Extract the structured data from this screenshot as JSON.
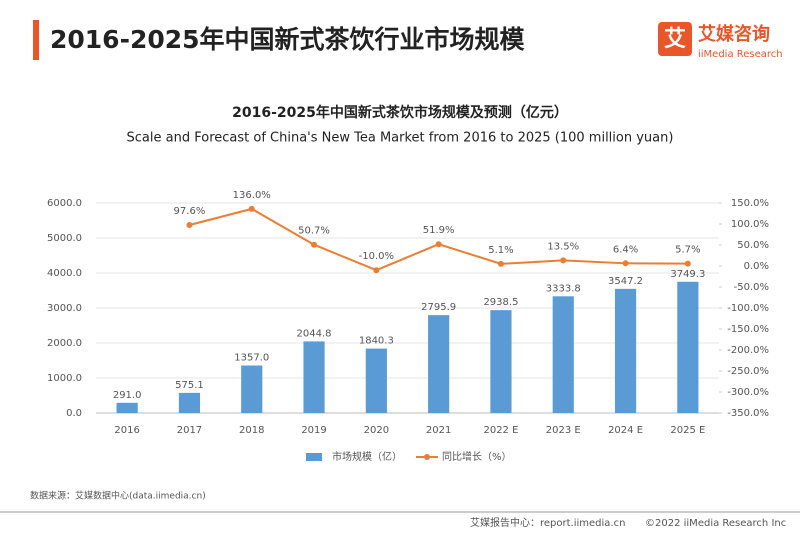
{
  "header": {
    "title": "2016-2025年中国新式茶饮行业市场规模",
    "logo_mark": "艾",
    "logo": "艾媒咨询",
    "logo_sub": "iiMedia Research"
  },
  "chart_data": {
    "type": "bar",
    "title": "2016-2025年中国新式茶饮市场规模及预测（亿元）",
    "subtitle": "Scale and Forecast of China's New Tea Market from 2016 to 2025 (100 million yuan)",
    "categories": [
      "2016",
      "2017",
      "2018",
      "2019",
      "2020",
      "2021",
      "2022 E",
      "2023 E",
      "2024 E",
      "2025 E"
    ],
    "series": [
      {
        "name": "市场规模（亿）",
        "type": "bar",
        "color": "#5b9bd5",
        "values": [
          291.0,
          575.1,
          1357.0,
          2044.8,
          1840.3,
          2795.9,
          2938.5,
          3333.8,
          3547.2,
          3749.3
        ],
        "value_labels": [
          "291.0",
          "575.1",
          "1357.0",
          "2044.8",
          "1840.3",
          "2795.9",
          "2938.5",
          "3333.8",
          "3547.2",
          "3749.3"
        ]
      },
      {
        "name": "同比增长（%）",
        "type": "line",
        "axis": "y2",
        "color": "#ed7d31",
        "values": [
          null,
          97.6,
          136.0,
          50.7,
          -10.0,
          51.9,
          5.1,
          13.5,
          6.4,
          5.7
        ],
        "value_labels": [
          null,
          "97.6%",
          "136.0%",
          "50.7%",
          "-10.0%",
          "51.9%",
          "5.1%",
          "13.5%",
          "6.4%",
          "5.7%"
        ]
      }
    ],
    "ylim": [
      0,
      6000
    ],
    "yticks": [
      {
        "value": 0,
        "label": "0.0"
      },
      {
        "value": 1000,
        "label": "1000.0"
      },
      {
        "value": 2000,
        "label": "2000.0"
      },
      {
        "value": 3000,
        "label": "3000.0"
      },
      {
        "value": 4000,
        "label": "4000.0"
      },
      {
        "value": 5000,
        "label": "5000.0"
      },
      {
        "value": 6000,
        "label": "6000.0"
      }
    ],
    "y2lim": [
      -350,
      150
    ],
    "y2ticks": [
      {
        "value": -350,
        "label": "-350.0%"
      },
      {
        "value": -300,
        "label": "-300.0%"
      },
      {
        "value": -250,
        "label": "-250.0%"
      },
      {
        "value": -200,
        "label": "-200.0%"
      },
      {
        "value": -150,
        "label": "-150.0%"
      },
      {
        "value": -100,
        "label": "-100.0%"
      },
      {
        "value": -50,
        "label": "-50.0%"
      },
      {
        "value": 0,
        "label": "0.0%"
      },
      {
        "value": 50,
        "label": "50.0%"
      },
      {
        "value": 100,
        "label": "100.0%"
      },
      {
        "value": 150,
        "label": "150.0%"
      }
    ],
    "grid": true,
    "legend": "bottom"
  },
  "footer": {
    "source": "数据来源：艾媒数据中心(data.iimedia.cn)",
    "report": "艾媒报告中心：report.iimedia.cn",
    "copyright": "©2022  iiMedia Research  Inc"
  }
}
